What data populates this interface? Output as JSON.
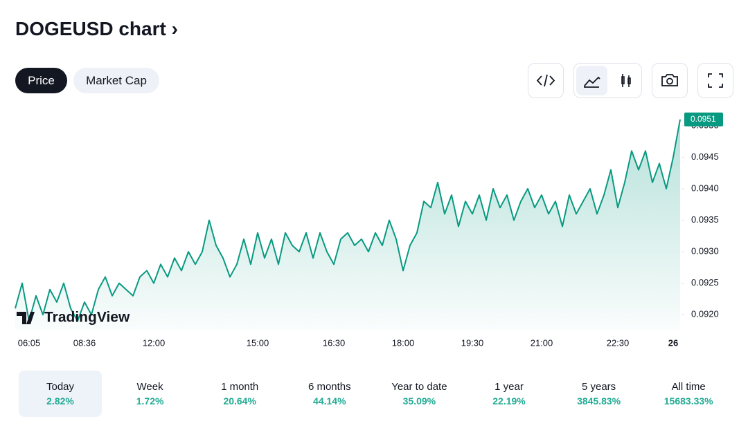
{
  "header": {
    "title": "DOGEUSD chart"
  },
  "tabs": [
    "Price",
    "Market Cap"
  ],
  "chart_data": {
    "type": "line",
    "logo": "TradingView",
    "color": "#089981",
    "current_value": 0.0951,
    "categories": [
      null,
      null,
      "06:05",
      null,
      null,
      null,
      null,
      null,
      null,
      null,
      "08:36",
      null,
      null,
      null,
      null,
      null,
      null,
      null,
      null,
      null,
      "12:00",
      null,
      null,
      null,
      null,
      null,
      null,
      null,
      null,
      null,
      null,
      null,
      null,
      null,
      null,
      "15:00",
      null,
      null,
      null,
      null,
      null,
      null,
      null,
      null,
      null,
      null,
      "16:30",
      null,
      null,
      null,
      null,
      null,
      null,
      null,
      null,
      null,
      "18:00",
      null,
      null,
      null,
      null,
      null,
      null,
      null,
      null,
      null,
      "19:30",
      null,
      null,
      null,
      null,
      null,
      null,
      null,
      null,
      null,
      "21:00",
      null,
      null,
      null,
      null,
      null,
      null,
      null,
      null,
      null,
      null,
      "22:30",
      null,
      null,
      null,
      null,
      null,
      null,
      null,
      "26",
      null
    ],
    "values": [
      0.0921,
      0.0925,
      0.0919,
      0.0923,
      0.092,
      0.0924,
      0.0922,
      0.0925,
      0.0921,
      0.0919,
      0.0922,
      0.092,
      0.0924,
      0.0926,
      0.0923,
      0.0925,
      0.0924,
      0.0923,
      0.0926,
      0.0927,
      0.0925,
      0.0928,
      0.0926,
      0.0929,
      0.0927,
      0.093,
      0.0928,
      0.093,
      0.0935,
      0.0931,
      0.0929,
      0.0926,
      0.0928,
      0.0932,
      0.0928,
      0.0933,
      0.0929,
      0.0932,
      0.0928,
      0.0933,
      0.0931,
      0.093,
      0.0933,
      0.0929,
      0.0933,
      0.093,
      0.0928,
      0.0932,
      0.0933,
      0.0931,
      0.0932,
      0.093,
      0.0933,
      0.0931,
      0.0935,
      0.0932,
      0.0927,
      0.0931,
      0.0933,
      0.0938,
      0.0937,
      0.0941,
      0.0936,
      0.0939,
      0.0934,
      0.0938,
      0.0936,
      0.0939,
      0.0935,
      0.094,
      0.0937,
      0.0939,
      0.0935,
      0.0938,
      0.094,
      0.0937,
      0.0939,
      0.0936,
      0.0938,
      0.0934,
      0.0939,
      0.0936,
      0.0938,
      0.094,
      0.0936,
      0.0939,
      0.0943,
      0.0937,
      0.0941,
      0.0946,
      0.0943,
      0.0946,
      0.0941,
      0.0944,
      0.094,
      0.0945,
      0.0951
    ],
    "ylim": [
      0.09175,
      0.09524
    ],
    "yticks": [
      {
        "value": 0.092,
        "label": "0.0920"
      },
      {
        "value": 0.0925,
        "label": "0.0925"
      },
      {
        "value": 0.093,
        "label": "0.0930"
      },
      {
        "value": 0.0935,
        "label": "0.0935"
      },
      {
        "value": 0.094,
        "label": "0.0940"
      },
      {
        "value": 0.0945,
        "label": "0.0945"
      },
      {
        "value": 0.095,
        "label": "0.0950"
      }
    ]
  },
  "periods": [
    {
      "label": "Today",
      "change": "2.82%"
    },
    {
      "label": "Week",
      "change": "1.72%"
    },
    {
      "label": "1 month",
      "change": "20.64%"
    },
    {
      "label": "6 months",
      "change": "44.14%"
    },
    {
      "label": "Year to date",
      "change": "35.09%"
    },
    {
      "label": "1 year",
      "change": "22.19%"
    },
    {
      "label": "5 years",
      "change": "3845.83%"
    },
    {
      "label": "All time",
      "change": "15683.33%"
    }
  ]
}
